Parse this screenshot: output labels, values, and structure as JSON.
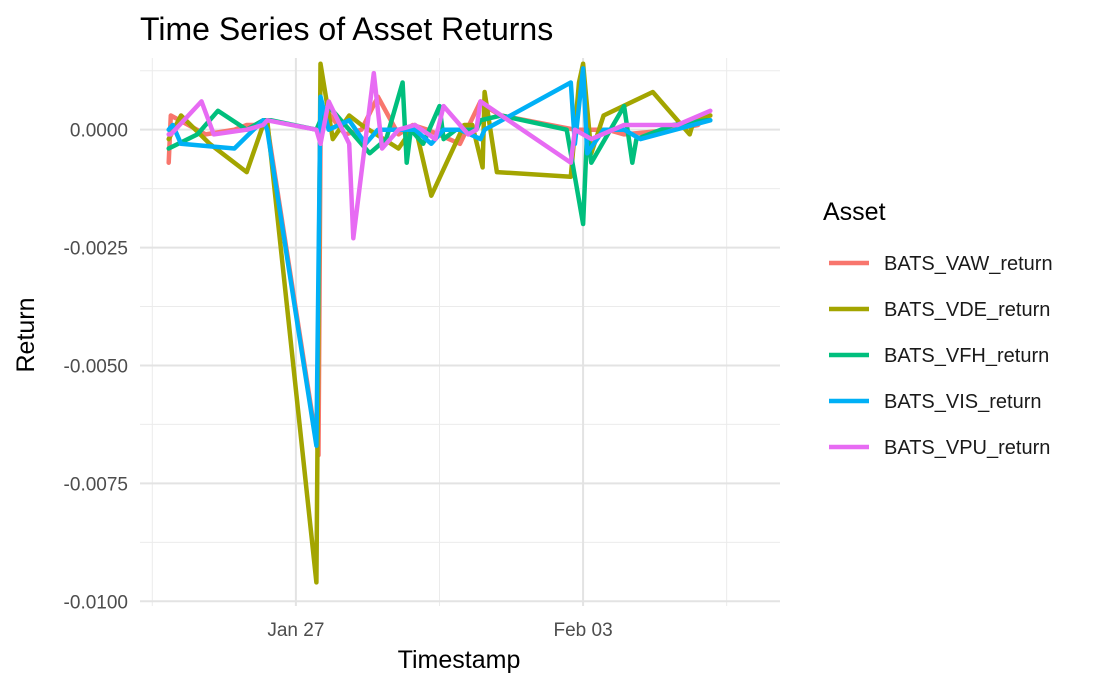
{
  "chart_data": {
    "type": "line",
    "title": "Time Series of Asset Returns",
    "xlabel": "Timestamp",
    "ylabel": "Return",
    "x_ticks": [
      "Jan 27",
      "Feb 03"
    ],
    "x_tick_days": [
      27,
      34
    ],
    "xlim_days": [
      23.2,
      38.8
    ],
    "y_ticks": [
      "0.0000",
      "-0.0025",
      "-0.0050",
      "-0.0075",
      "-0.0100"
    ],
    "y_tick_values": [
      0.0,
      -0.0025,
      -0.005,
      -0.0075,
      -0.01
    ],
    "ylim": [
      -0.0101,
      0.00152
    ],
    "grid": true,
    "legend_title": "Asset",
    "legend_position": "right",
    "series": [
      {
        "name": "BATS_VAW_return",
        "color": "#F8766D",
        "x_days": [
          23.9,
          23.95,
          24.8,
          25.5,
          25.8,
          26.3,
          27.55,
          27.6,
          27.75,
          28.2,
          28.6,
          29.0,
          29.5,
          29.85,
          30.2,
          31.0,
          31.5,
          31.6,
          32.0,
          33.8,
          34.6,
          35.0,
          36.2,
          36.8,
          37.0,
          37.1
        ],
        "y": [
          -0.0007,
          0.0003,
          -0.0001,
          0.0,
          0.0001,
          0.0001,
          -0.0069,
          -0.0002,
          0.0004,
          -0.0001,
          0.0,
          0.0007,
          -0.0001,
          0.0001,
          0.0,
          -0.0003,
          0.0006,
          0.0005,
          0.0003,
          0.0,
          0.0,
          -0.0001,
          0.0,
          0.0001,
          0.0003,
          0.0003
        ]
      },
      {
        "name": "BATS_VDE_return",
        "color": "#A3A500",
        "x_days": [
          23.9,
          24.2,
          24.9,
          25.8,
          26.2,
          26.3,
          27.5,
          27.6,
          27.9,
          28.3,
          28.6,
          29.5,
          29.9,
          30.3,
          31.1,
          31.3,
          31.55,
          31.6,
          31.9,
          33.7,
          33.9,
          34.0,
          34.2,
          34.5,
          35.7,
          36.6,
          36.7,
          37.1
        ],
        "y": [
          -0.0002,
          0.0003,
          -0.0003,
          -0.0009,
          0.0001,
          0.0002,
          -0.0096,
          0.0014,
          -0.0002,
          0.0003,
          0.0001,
          -0.0004,
          0.0001,
          -0.0014,
          0.0001,
          0.0001,
          -0.0008,
          0.0008,
          -0.0009,
          -0.001,
          0.001,
          0.0014,
          -0.0005,
          0.0003,
          0.0008,
          -0.0001,
          0.0002,
          0.0003
        ]
      },
      {
        "name": "BATS_VFH_return",
        "color": "#00BF7D",
        "x_days": [
          23.9,
          24.6,
          25.1,
          25.8,
          26.2,
          26.4,
          27.5,
          27.6,
          27.8,
          28.4,
          28.8,
          29.2,
          29.6,
          29.7,
          29.8,
          30.1,
          30.5,
          30.6,
          30.9,
          31.4,
          31.5,
          32.0,
          33.6,
          34.0,
          34.1,
          34.2,
          35.0,
          35.2,
          35.3,
          36.2,
          37.0,
          37.1
        ],
        "y": [
          -0.0004,
          -0.0001,
          0.0004,
          0.0,
          0.0002,
          0.0002,
          0.0,
          0.0002,
          0.0005,
          -0.0001,
          -0.0005,
          -0.0002,
          0.001,
          -0.0007,
          0.0,
          -0.0003,
          0.0005,
          -0.0002,
          0.0,
          0.0,
          0.0002,
          0.0003,
          0.0,
          -0.002,
          0.0,
          -0.0007,
          0.0005,
          -0.0007,
          -0.0002,
          0.0001,
          0.0002,
          0.0002
        ]
      },
      {
        "name": "BATS_VIS_return",
        "color": "#00B0F6",
        "x_days": [
          23.9,
          24.0,
          24.2,
          25.5,
          26.2,
          26.3,
          27.5,
          27.6,
          27.8,
          28.3,
          28.7,
          29.0,
          29.9,
          30.3,
          30.6,
          31.0,
          31.5,
          31.6,
          33.7,
          33.8,
          34.0,
          34.1,
          34.5,
          35.0,
          35.4,
          37.1
        ],
        "y": [
          0.0,
          0.0001,
          -0.0003,
          -0.0004,
          0.0002,
          0.0,
          -0.0067,
          0.0007,
          0.0,
          0.0002,
          -0.0003,
          0.0,
          0.0,
          -0.0003,
          0.0,
          0.0,
          -0.0002,
          0.0,
          0.001,
          -0.0003,
          0.0013,
          -0.0005,
          0.0,
          0.0,
          -0.0002,
          0.0002
        ]
      },
      {
        "name": "BATS_VPU_return",
        "color": "#E76BF3",
        "x_days": [
          23.9,
          23.95,
          24.7,
          25.0,
          25.8,
          26.2,
          26.3,
          27.5,
          27.6,
          27.8,
          28.3,
          28.4,
          28.9,
          29.1,
          29.5,
          29.9,
          30.4,
          30.6,
          31.2,
          31.4,
          31.5,
          33.7,
          33.8,
          34.2,
          35.0,
          36.3,
          37.1
        ],
        "y": [
          -0.0001,
          -0.0001,
          0.0006,
          -0.0001,
          0.0,
          0.0001,
          0.0002,
          0.0,
          -0.0003,
          0.0006,
          -0.0003,
          -0.0023,
          0.0012,
          -0.0004,
          0.0,
          0.0001,
          -0.0002,
          0.0005,
          -0.0001,
          0.0,
          0.0006,
          -0.0007,
          0.0,
          -0.0002,
          0.0001,
          0.0001,
          0.0004
        ]
      }
    ]
  }
}
